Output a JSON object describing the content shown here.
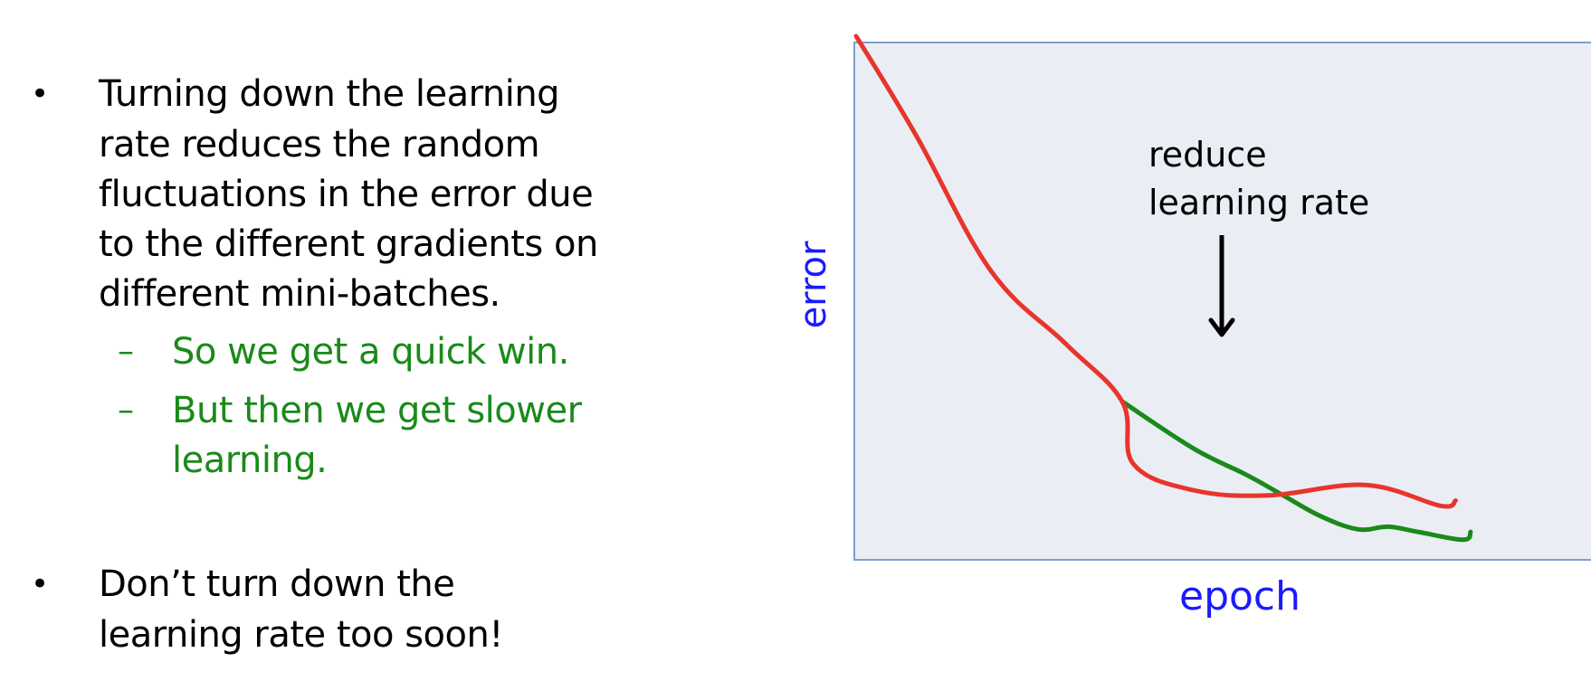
{
  "bullets": [
    {
      "lines": [
        "Turning down the learning",
        "rate reduces the random",
        "fluctuations in the error due",
        "to the different gradients on",
        "different mini-batches."
      ],
      "sub_items": [
        {
          "lines": [
            "So we get a quick win."
          ]
        },
        {
          "lines": [
            "But then we get slower",
            "learning."
          ]
        }
      ]
    },
    {
      "lines": [
        "Don’t turn down the",
        "learning rate too soon!"
      ]
    }
  ],
  "bullet_symbol": "•",
  "sub_bullet_symbol": "–",
  "diagram": {
    "y_label": "error",
    "x_label": "epoch",
    "annotation": [
      "reduce",
      "learning rate"
    ],
    "colors": {
      "axis_label": "#1a1aff",
      "plot_bg": "#eaeef4",
      "plot_border": "#7f9fc8",
      "reduced_curve": "#e8352c",
      "unreduced_curve": "#1a8a1a",
      "annotation_text": "#000000",
      "sub_bullet_text": "#1a8a1a"
    },
    "icons": {
      "annotation_arrow": "down-arrow-icon"
    },
    "curves": [
      {
        "name": "reduced-learning-rate",
        "points": [
          [
            0,
            100
          ],
          [
            8,
            81
          ],
          [
            18,
            55
          ],
          [
            28,
            41
          ],
          [
            35.5,
            30
          ],
          [
            37,
            18
          ],
          [
            45,
            13
          ],
          [
            55,
            12
          ],
          [
            68,
            14
          ],
          [
            78,
            10
          ],
          [
            80,
            11
          ]
        ]
      },
      {
        "name": "constant-learning-rate",
        "points": [
          [
            35.5,
            30
          ],
          [
            45,
            21
          ],
          [
            52,
            16
          ],
          [
            57,
            12
          ],
          [
            62,
            8
          ],
          [
            67,
            5.5
          ],
          [
            71,
            6
          ],
          [
            75,
            5
          ],
          [
            81,
            3.5
          ],
          [
            82,
            5
          ]
        ]
      }
    ],
    "drop_epoch": 35.5
  }
}
